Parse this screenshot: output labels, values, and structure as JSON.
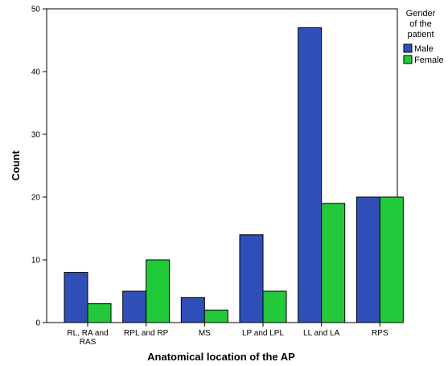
{
  "chart_data": {
    "type": "bar",
    "title": "",
    "xlabel": "Anatomical location of the AP",
    "ylabel": "Count",
    "ylim": [
      0,
      50
    ],
    "yticks": [
      0,
      10,
      20,
      30,
      40,
      50
    ],
    "grid": false,
    "legend_position": "top-right",
    "categories": [
      [
        "RL, RA and",
        "RAS"
      ],
      [
        "RPL and RP"
      ],
      [
        "MS"
      ],
      [
        "LP and LPL"
      ],
      [
        "LL and LA"
      ],
      [
        "RPS"
      ]
    ],
    "legend": {
      "title": [
        "Gender",
        "of the",
        "patient"
      ],
      "items": [
        "Male",
        "Female"
      ]
    },
    "series": [
      {
        "name": "Male",
        "color": "#2f4fb8",
        "values": [
          8,
          5,
          4,
          14,
          47,
          20
        ]
      },
      {
        "name": "Female",
        "color": "#22c93a",
        "values": [
          3,
          10,
          2,
          5,
          19,
          20
        ]
      }
    ]
  }
}
